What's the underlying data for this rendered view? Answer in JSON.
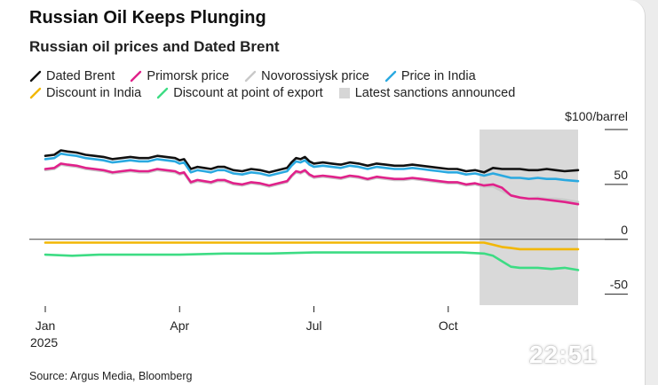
{
  "chart_data": {
    "type": "line",
    "title": "Russian Oil Keeps Plunging",
    "subtitle": "Russian oil prices and Dated Brent",
    "unit_label": "$100/barrel",
    "ylim": [
      -60,
      100
    ],
    "yticks": [
      {
        "value": 100,
        "label": ""
      },
      {
        "value": 50,
        "label": "50"
      },
      {
        "value": 0,
        "label": "0"
      },
      {
        "value": -50,
        "label": "-50"
      }
    ],
    "xlim": [
      0,
      11.9
    ],
    "xticks": [
      {
        "value": 0,
        "label": "Jan",
        "sublabel": "2025"
      },
      {
        "value": 3,
        "label": "Apr",
        "sublabel": ""
      },
      {
        "value": 6,
        "label": "Jul",
        "sublabel": ""
      },
      {
        "value": 9,
        "label": "Oct",
        "sublabel": ""
      }
    ],
    "shaded_region": {
      "label": "Latest sanctions announced",
      "x_start": 9.7,
      "x_end": 11.9
    },
    "series": [
      {
        "name": "Dated Brent",
        "color": "#111111",
        "x": [
          0,
          0.2,
          0.35,
          0.5,
          0.7,
          0.9,
          1.1,
          1.3,
          1.5,
          1.7,
          1.9,
          2.1,
          2.3,
          2.5,
          2.7,
          2.9,
          3.0,
          3.1,
          3.25,
          3.4,
          3.55,
          3.7,
          3.85,
          4.0,
          4.2,
          4.4,
          4.6,
          4.8,
          5.0,
          5.2,
          5.4,
          5.5,
          5.6,
          5.7,
          5.8,
          5.9,
          6.0,
          6.2,
          6.4,
          6.6,
          6.8,
          7.0,
          7.2,
          7.4,
          7.6,
          7.8,
          8.0,
          8.2,
          8.4,
          8.6,
          8.8,
          9.0,
          9.2,
          9.4,
          9.6,
          9.8,
          10.0,
          10.2,
          10.4,
          10.6,
          10.8,
          11.0,
          11.2,
          11.4,
          11.6,
          11.9
        ],
        "values": [
          76,
          77,
          81,
          80,
          79,
          77,
          76,
          75,
          73,
          74,
          75,
          74,
          74,
          76,
          75,
          74,
          72,
          73,
          64,
          66,
          65,
          64,
          66,
          66,
          63,
          62,
          64,
          63,
          61,
          63,
          65,
          70,
          74,
          73,
          75,
          71,
          69,
          70,
          69,
          68,
          70,
          69,
          67,
          69,
          68,
          67,
          67,
          68,
          67,
          66,
          65,
          64,
          64,
          62,
          63,
          61,
          65,
          64,
          64,
          64,
          63,
          63,
          64,
          63,
          62,
          63
        ]
      },
      {
        "name": "Novorossiysk price",
        "color": "#c9c9c9",
        "x": [
          0,
          0.2,
          0.35,
          0.5,
          0.7,
          0.9,
          1.1,
          1.3,
          1.5,
          1.7,
          1.9,
          2.1,
          2.3,
          2.5,
          2.7,
          2.9,
          3.0,
          3.1,
          3.25,
          3.4,
          3.55,
          3.7,
          3.85,
          4.0,
          4.2,
          4.4,
          4.6,
          4.8,
          5.0,
          5.2,
          5.4,
          5.5,
          5.6,
          5.7,
          5.8,
          5.9,
          6.0,
          6.2,
          6.4,
          6.6,
          6.8,
          7.0,
          7.2,
          7.4,
          7.6,
          7.8,
          8.0,
          8.2,
          8.4,
          8.6,
          8.8,
          9.0,
          9.2,
          9.4,
          9.6,
          9.8,
          10.0,
          10.2,
          10.4,
          10.6,
          10.8,
          11.0,
          11.2,
          11.4,
          11.6,
          11.9
        ],
        "values": [
          63,
          64,
          68,
          67,
          66,
          64,
          63,
          62,
          60,
          61,
          62,
          61,
          61,
          63,
          62,
          61,
          59,
          60,
          51,
          53,
          52,
          51,
          53,
          53,
          50,
          49,
          51,
          50,
          48,
          50,
          52,
          57,
          61,
          60,
          62,
          58,
          56,
          57,
          56,
          55,
          57,
          56,
          54,
          56,
          55,
          54,
          54,
          55,
          54,
          53,
          52,
          51,
          51,
          49,
          50,
          48,
          48,
          44,
          40,
          38,
          37,
          38,
          37,
          37,
          36,
          34
        ]
      },
      {
        "name": "Price in India",
        "color": "#2aa9e0",
        "x": [
          0,
          0.2,
          0.35,
          0.5,
          0.7,
          0.9,
          1.1,
          1.3,
          1.5,
          1.7,
          1.9,
          2.1,
          2.3,
          2.5,
          2.7,
          2.9,
          3.0,
          3.1,
          3.25,
          3.4,
          3.55,
          3.7,
          3.85,
          4.0,
          4.2,
          4.4,
          4.6,
          4.8,
          5.0,
          5.2,
          5.4,
          5.5,
          5.6,
          5.7,
          5.8,
          5.9,
          6.0,
          6.2,
          6.4,
          6.6,
          6.8,
          7.0,
          7.2,
          7.4,
          7.6,
          7.8,
          8.0,
          8.2,
          8.4,
          8.6,
          8.8,
          9.0,
          9.2,
          9.4,
          9.6,
          9.8,
          10.0,
          10.2,
          10.4,
          10.6,
          10.8,
          11.0,
          11.2,
          11.4,
          11.6,
          11.9
        ],
        "values": [
          73,
          74,
          78,
          77,
          76,
          74,
          73,
          72,
          70,
          71,
          72,
          71,
          71,
          73,
          72,
          71,
          69,
          70,
          61,
          63,
          62,
          61,
          63,
          63,
          60,
          59,
          61,
          60,
          58,
          60,
          62,
          67,
          71,
          70,
          72,
          68,
          66,
          67,
          66,
          65,
          67,
          66,
          64,
          66,
          65,
          64,
          64,
          65,
          64,
          63,
          62,
          61,
          61,
          59,
          60,
          58,
          60,
          58,
          56,
          56,
          55,
          56,
          55,
          55,
          54,
          53
        ]
      },
      {
        "name": "Primorsk price",
        "color": "#e0218a",
        "x": [
          0,
          0.2,
          0.35,
          0.5,
          0.7,
          0.9,
          1.1,
          1.3,
          1.5,
          1.7,
          1.9,
          2.1,
          2.3,
          2.5,
          2.7,
          2.9,
          3.0,
          3.1,
          3.25,
          3.4,
          3.55,
          3.7,
          3.85,
          4.0,
          4.2,
          4.4,
          4.6,
          4.8,
          5.0,
          5.2,
          5.4,
          5.5,
          5.6,
          5.7,
          5.8,
          5.9,
          6.0,
          6.2,
          6.4,
          6.6,
          6.8,
          7.0,
          7.2,
          7.4,
          7.6,
          7.8,
          8.0,
          8.2,
          8.4,
          8.6,
          8.8,
          9.0,
          9.2,
          9.4,
          9.6,
          9.8,
          10.0,
          10.2,
          10.4,
          10.6,
          10.8,
          11.0,
          11.2,
          11.4,
          11.6,
          11.9
        ],
        "values": [
          64,
          65,
          69,
          68,
          67,
          65,
          64,
          63,
          61,
          62,
          63,
          62,
          62,
          64,
          63,
          62,
          60,
          61,
          52,
          54,
          53,
          52,
          54,
          54,
          51,
          50,
          52,
          51,
          49,
          51,
          53,
          58,
          62,
          61,
          63,
          59,
          57,
          58,
          57,
          56,
          58,
          57,
          55,
          57,
          56,
          55,
          55,
          56,
          55,
          54,
          53,
          52,
          52,
          50,
          51,
          49,
          50,
          47,
          40,
          38,
          37,
          37,
          36,
          35,
          34,
          32
        ]
      },
      {
        "name": "Discount in India",
        "color": "#f2b705",
        "x": [
          0,
          1,
          2,
          3,
          4,
          5,
          6,
          7,
          8,
          9,
          9.8,
          10.0,
          10.2,
          10.4,
          10.6,
          11.0,
          11.5,
          11.9
        ],
        "values": [
          -3,
          -3,
          -3,
          -3,
          -3,
          -3,
          -3,
          -3,
          -3,
          -3,
          -3,
          -5,
          -7,
          -8,
          -9,
          -9,
          -9,
          -9
        ]
      },
      {
        "name": "Discount at point of export",
        "color": "#3ddc84",
        "x": [
          0,
          0.6,
          1.2,
          2.0,
          3.0,
          4.0,
          5.0,
          6.0,
          6.8,
          7.5,
          8.5,
          9.3,
          9.8,
          10.0,
          10.2,
          10.4,
          10.6,
          11.0,
          11.3,
          11.6,
          11.9
        ],
        "values": [
          -14,
          -15,
          -14,
          -14,
          -14,
          -13,
          -13,
          -12,
          -12,
          -12,
          -12,
          -12,
          -13,
          -15,
          -20,
          -25,
          -26,
          -26,
          -27,
          -26,
          -28
        ]
      }
    ],
    "legend": [
      "Dated Brent",
      "Primorsk price",
      "Novorossiysk price",
      "Price in India",
      "Discount in India",
      "Discount at point of export",
      "Latest sanctions announced"
    ]
  },
  "source": "Source: Argus Media, Bloomberg",
  "timestamp": "22:51"
}
